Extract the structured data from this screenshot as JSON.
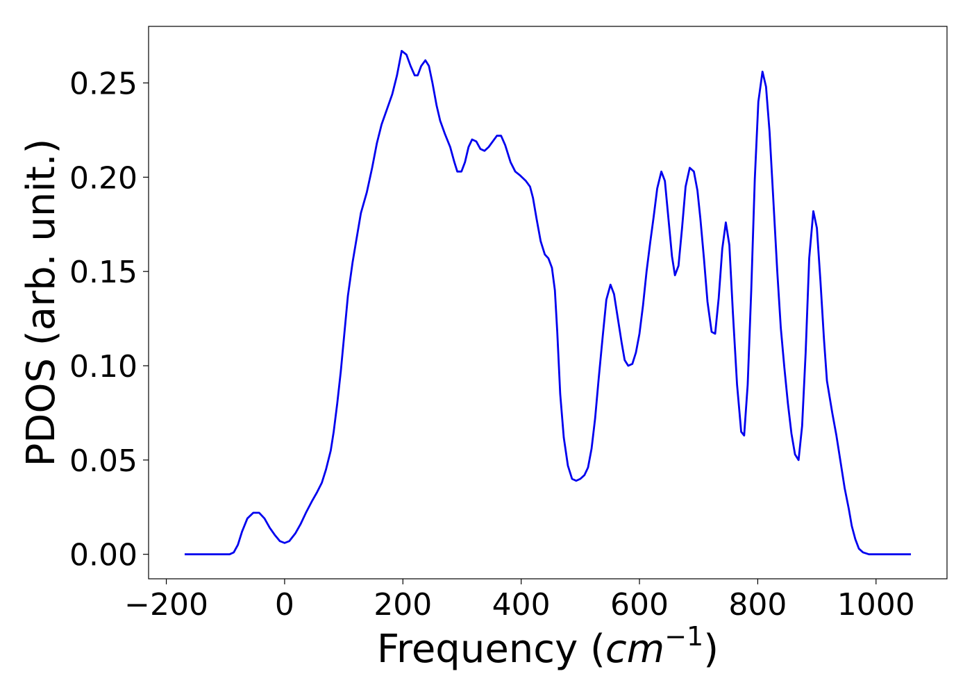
{
  "chart_data": {
    "type": "line",
    "xlabel": {
      "text": "Frequency (",
      "italic": "cm",
      "sup": "−1",
      "close": ")"
    },
    "ylabel": "PDOS (arb. unit.)",
    "x": [
      -169,
      -100,
      -93,
      -86,
      -79,
      -72,
      -63,
      -53,
      -43,
      -34,
      -25,
      -16,
      -8,
      0,
      8,
      18,
      27,
      36,
      46,
      55,
      63,
      70,
      78,
      83,
      89,
      95,
      101,
      107,
      115,
      122,
      129,
      139,
      148,
      156,
      164,
      173,
      182,
      190,
      198,
      206,
      213,
      220,
      225,
      231,
      238,
      244,
      250,
      257,
      263,
      271,
      280,
      287,
      292,
      299,
      305,
      311,
      317,
      324,
      331,
      338,
      345,
      352,
      359,
      366,
      373,
      382,
      390,
      398,
      408,
      415,
      420,
      426,
      433,
      440,
      446,
      452,
      457,
      461,
      466,
      472,
      479,
      486,
      493,
      500,
      507,
      513,
      519,
      525,
      531,
      538,
      544,
      551,
      557,
      563,
      570,
      575,
      581,
      588,
      594,
      600,
      606,
      612,
      618,
      624,
      630,
      637,
      643,
      649,
      655,
      660,
      666,
      672,
      678,
      685,
      692,
      698,
      703,
      709,
      715,
      722,
      728,
      734,
      740,
      746,
      752,
      758,
      765,
      772,
      777,
      783,
      789,
      795,
      801,
      808,
      814,
      820,
      826,
      833,
      839,
      845,
      851,
      857,
      863,
      869,
      875,
      881,
      887,
      894,
      900,
      906,
      912,
      917,
      926,
      933,
      940,
      947,
      954,
      959,
      965,
      971,
      978,
      988,
      1059
    ],
    "series": [
      {
        "name": "PDOS",
        "color": "#0000ee",
        "values": [
          0,
          0,
          0,
          0.001,
          0.005,
          0.012,
          0.019,
          0.022,
          0.022,
          0.019,
          0.014,
          0.01,
          0.007,
          0.006,
          0.007,
          0.011,
          0.016,
          0.022,
          0.028,
          0.033,
          0.038,
          0.045,
          0.055,
          0.065,
          0.08,
          0.097,
          0.117,
          0.137,
          0.155,
          0.168,
          0.181,
          0.192,
          0.205,
          0.218,
          0.228,
          0.236,
          0.244,
          0.254,
          0.267,
          0.265,
          0.259,
          0.254,
          0.254,
          0.259,
          0.262,
          0.259,
          0.25,
          0.238,
          0.23,
          0.223,
          0.216,
          0.208,
          0.203,
          0.203,
          0.208,
          0.216,
          0.22,
          0.219,
          0.215,
          0.214,
          0.216,
          0.219,
          0.222,
          0.222,
          0.217,
          0.208,
          0.203,
          0.201,
          0.198,
          0.195,
          0.189,
          0.178,
          0.166,
          0.159,
          0.157,
          0.152,
          0.14,
          0.118,
          0.085,
          0.062,
          0.047,
          0.04,
          0.039,
          0.04,
          0.042,
          0.046,
          0.056,
          0.072,
          0.093,
          0.116,
          0.135,
          0.143,
          0.138,
          0.126,
          0.112,
          0.103,
          0.1,
          0.101,
          0.107,
          0.117,
          0.132,
          0.15,
          0.165,
          0.179,
          0.194,
          0.203,
          0.198,
          0.178,
          0.158,
          0.148,
          0.153,
          0.173,
          0.195,
          0.205,
          0.203,
          0.193,
          0.178,
          0.157,
          0.134,
          0.118,
          0.117,
          0.136,
          0.162,
          0.176,
          0.164,
          0.128,
          0.09,
          0.065,
          0.063,
          0.09,
          0.14,
          0.199,
          0.24,
          0.256,
          0.248,
          0.224,
          0.19,
          0.15,
          0.12,
          0.099,
          0.08,
          0.064,
          0.053,
          0.05,
          0.068,
          0.107,
          0.157,
          0.182,
          0.173,
          0.145,
          0.114,
          0.092,
          0.075,
          0.063,
          0.049,
          0.035,
          0.024,
          0.015,
          0.008,
          0.003,
          0.001,
          0,
          0
        ]
      }
    ],
    "xlim": [
      -230,
      1120
    ],
    "ylim": [
      -0.013,
      0.28
    ],
    "xticks": [
      {
        "value": -200,
        "label": "−200"
      },
      0,
      200,
      400,
      600,
      800,
      1000
    ],
    "yticks": [
      {
        "value": 0,
        "label": "0.00"
      },
      {
        "value": 0.05,
        "label": "0.05"
      },
      {
        "value": 0.1,
        "label": "0.10"
      },
      {
        "value": 0.15,
        "label": "0.15"
      },
      {
        "value": 0.2,
        "label": "0.20"
      },
      {
        "value": 0.25,
        "label": "0.25"
      }
    ],
    "grid": false
  }
}
